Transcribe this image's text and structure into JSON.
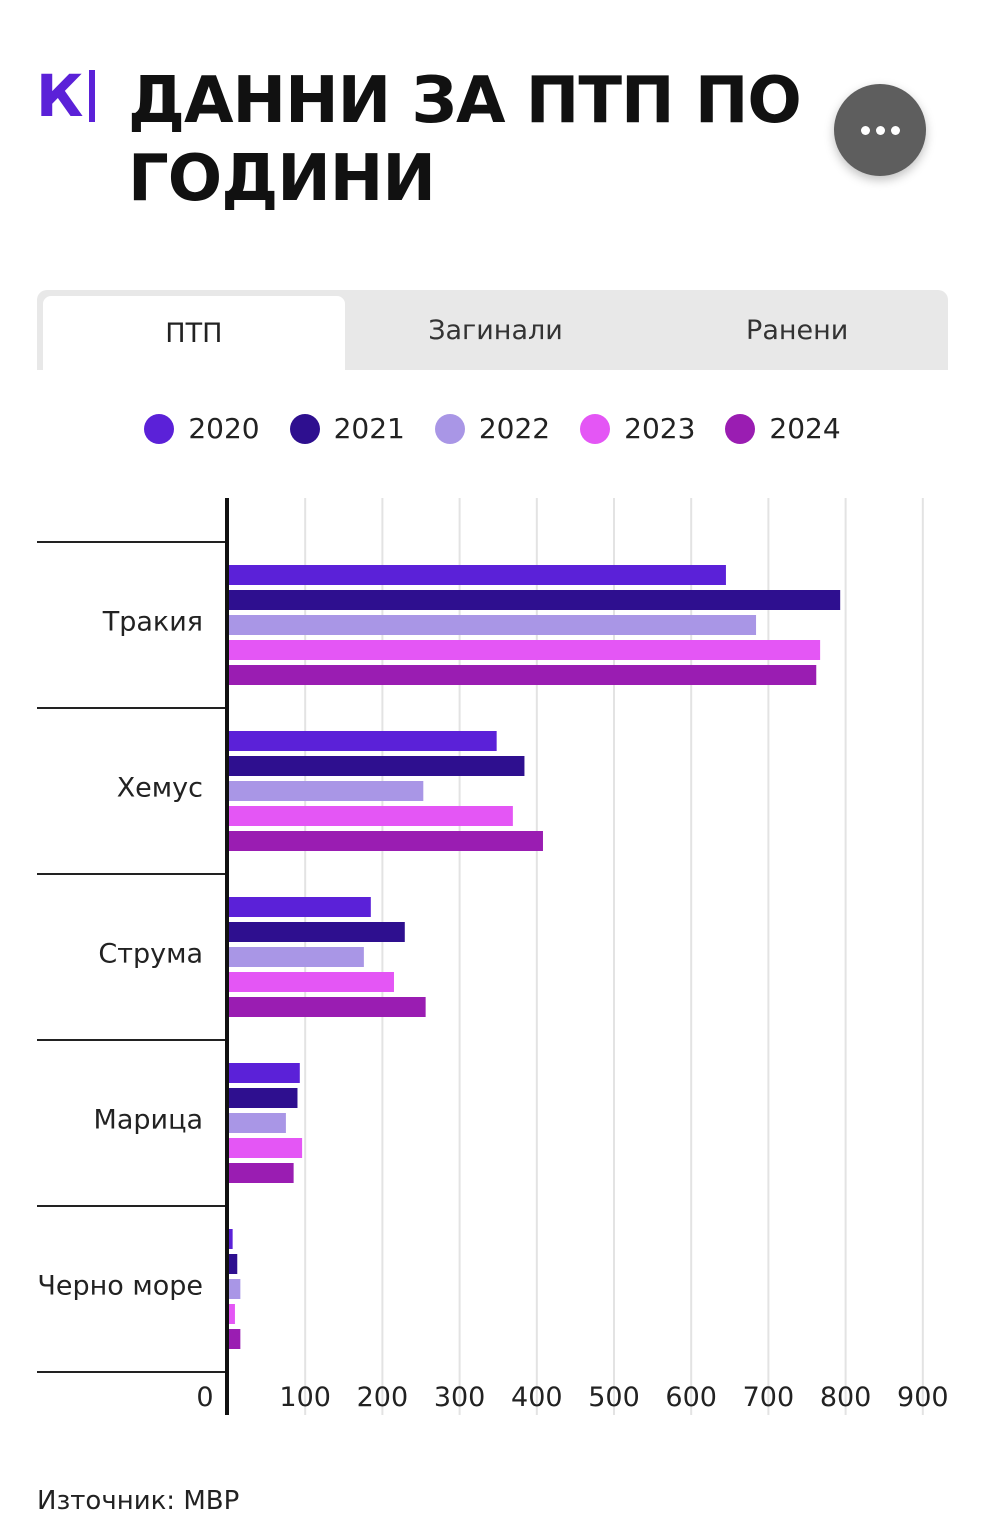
{
  "header": {
    "logo_text": "К",
    "title": "ДАННИ ЗА ПТП ПО ГОДИНИ",
    "more_icon": "more-horizontal-icon"
  },
  "tabs": [
    {
      "label": "ПТП",
      "active": true
    },
    {
      "label": "Загинали",
      "active": false
    },
    {
      "label": "Ранени",
      "active": false
    }
  ],
  "colors": {
    "brand": "#5b21d8",
    "series": [
      "#5b21d8",
      "#2e0f8f",
      "#a996e6",
      "#e456f5",
      "#9a1db2"
    ]
  },
  "chart_data": {
    "type": "bar",
    "orientation": "horizontal",
    "categories": [
      "Тракия",
      "Хемус",
      "Струма",
      "Марица",
      "Черно море"
    ],
    "series": [
      {
        "name": "2020",
        "values": [
          645,
          348,
          185,
          93,
          6
        ]
      },
      {
        "name": "2021",
        "values": [
          793,
          384,
          229,
          90,
          12
        ]
      },
      {
        "name": "2022",
        "values": [
          684,
          253,
          176,
          75,
          16
        ]
      },
      {
        "name": "2023",
        "values": [
          767,
          369,
          215,
          96,
          9
        ]
      },
      {
        "name": "2024",
        "values": [
          762,
          408,
          256,
          85,
          16
        ]
      }
    ],
    "xlim": [
      0,
      900
    ],
    "xticks": [
      0,
      100,
      200,
      300,
      400,
      500,
      600,
      700,
      800,
      900
    ],
    "grid": true,
    "legend_position": "top"
  },
  "footer": {
    "source": "Източник: МВР"
  }
}
